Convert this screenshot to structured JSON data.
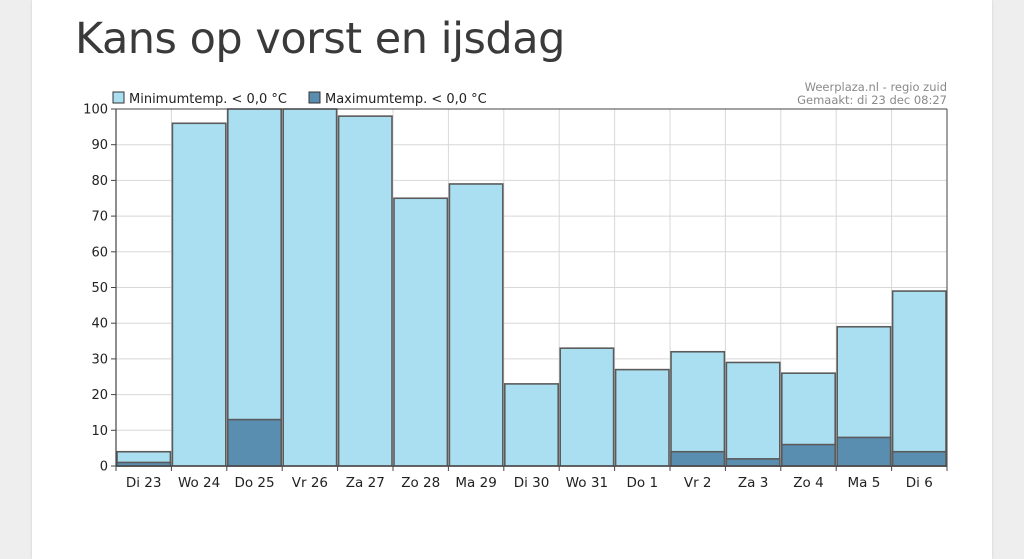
{
  "page": {
    "title": "Kans op vorst en ijsdag"
  },
  "chart_data": {
    "type": "bar",
    "overlay": true,
    "categories": [
      "Di 23",
      "Wo 24",
      "Do 25",
      "Vr 26",
      "Za 27",
      "Zo 28",
      "Ma 29",
      "Di 30",
      "Wo 31",
      "Do 1",
      "Vr 2",
      "Za 3",
      "Zo 4",
      "Ma 5",
      "Di 6"
    ],
    "series": [
      {
        "name": "Minimumtemp. < 0,0 °C",
        "color": "#a9dff1",
        "values": [
          4,
          96,
          100,
          100,
          98,
          75,
          79,
          23,
          33,
          27,
          32,
          29,
          26,
          39,
          49
        ]
      },
      {
        "name": "Maximumtemp. < 0,0 °C",
        "color": "#5a8eb1",
        "values": [
          1,
          0,
          13,
          0,
          0,
          0,
          0,
          0,
          0,
          0,
          4,
          2,
          6,
          8,
          4
        ]
      }
    ],
    "y_ticks": [
      0,
      10,
      20,
      30,
      40,
      50,
      60,
      70,
      80,
      90,
      100
    ],
    "ylim": [
      0,
      100
    ],
    "grid": true,
    "legend_position": "top-left",
    "credit": [
      "Weerplaza.nl - regio zuid",
      "Gemaakt: di 23 dec 08:27"
    ]
  }
}
